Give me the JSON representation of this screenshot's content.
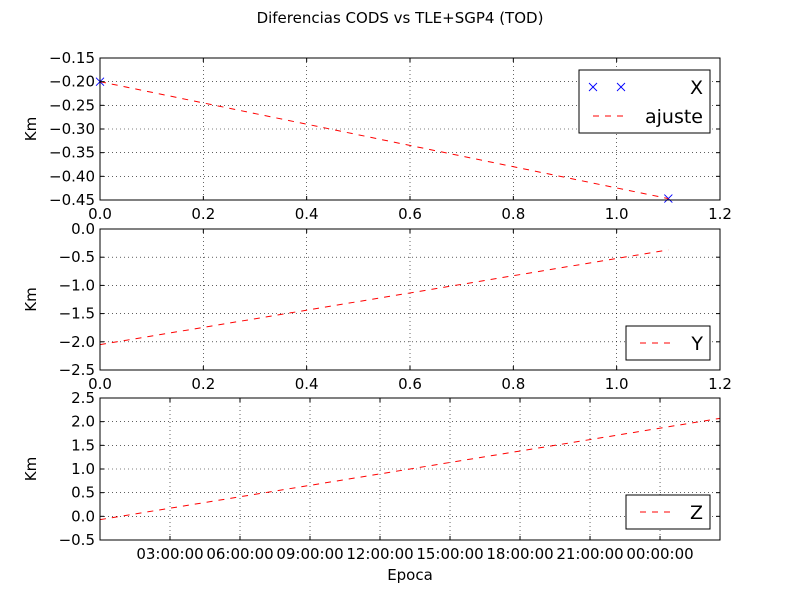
{
  "figure": {
    "title": "Diferencias CODS vs TLE+SGP4 (TOD)"
  },
  "chart_data": [
    {
      "type": "line",
      "ylabel": "Km",
      "xlim": [
        0.0,
        1.2
      ],
      "ylim": [
        -0.45,
        -0.15
      ],
      "xticks": [
        "0.0",
        "0.2",
        "0.4",
        "0.6",
        "0.8",
        "1.0",
        "1.2"
      ],
      "xtick_values": [
        0.0,
        0.2,
        0.4,
        0.6,
        0.8,
        1.0,
        1.2
      ],
      "yticks": [
        "−0.15",
        "−0.20",
        "−0.25",
        "−0.30",
        "−0.35",
        "−0.40",
        "−0.45"
      ],
      "ytick_values": [
        -0.15,
        -0.2,
        -0.25,
        -0.3,
        -0.35,
        -0.4,
        -0.45
      ],
      "grid": true,
      "legend_position": "top-right",
      "series": [
        {
          "name": "X",
          "style": "markers",
          "marker": "x",
          "color": "#0000ff",
          "x": [
            0.0,
            1.1
          ],
          "y": [
            -0.2,
            -0.447
          ]
        },
        {
          "name": "ajuste",
          "style": "dashed",
          "color": "#ff0000",
          "x": [
            0.0,
            1.1
          ],
          "y": [
            -0.2,
            -0.447
          ]
        }
      ]
    },
    {
      "type": "line",
      "ylabel": "Km",
      "xlim": [
        0.0,
        1.2
      ],
      "ylim": [
        -2.5,
        0.0
      ],
      "xticks": [
        "0.0",
        "0.2",
        "0.4",
        "0.6",
        "0.8",
        "1.0",
        "1.2"
      ],
      "xtick_values": [
        0.0,
        0.2,
        0.4,
        0.6,
        0.8,
        1.0,
        1.2
      ],
      "yticks": [
        "0.0",
        "−0.5",
        "−1.0",
        "−1.5",
        "−2.0",
        "−2.5"
      ],
      "ytick_values": [
        0.0,
        -0.5,
        -1.0,
        -1.5,
        -2.0,
        -2.5
      ],
      "grid": true,
      "legend_position": "bottom-right",
      "series": [
        {
          "name": "Y",
          "style": "dashed",
          "color": "#ff0000",
          "x": [
            0.0,
            1.1
          ],
          "y": [
            -2.05,
            -0.37
          ]
        }
      ]
    },
    {
      "type": "line",
      "xlabel": "Epoca",
      "ylabel": "Km",
      "xlim": [
        0.0,
        26.57
      ],
      "ylim": [
        -0.5,
        2.5
      ],
      "xticks": [
        "03:00:00",
        "06:00:00",
        "09:00:00",
        "12:00:00",
        "15:00:00",
        "18:00:00",
        "21:00:00",
        "00:00:00"
      ],
      "xtick_values": [
        3,
        6,
        9,
        12,
        15,
        18,
        21,
        24
      ],
      "yticks": [
        "2.5",
        "2.0",
        "1.5",
        "1.0",
        "0.5",
        "0.0",
        "−0.5"
      ],
      "ytick_values": [
        2.5,
        2.0,
        1.5,
        1.0,
        0.5,
        0.0,
        -0.5
      ],
      "grid": true,
      "legend_position": "bottom-right",
      "series": [
        {
          "name": "Z",
          "style": "dashed",
          "color": "#ff0000",
          "x": [
            0.0,
            26.57
          ],
          "y": [
            -0.07,
            2.07
          ]
        }
      ]
    }
  ]
}
